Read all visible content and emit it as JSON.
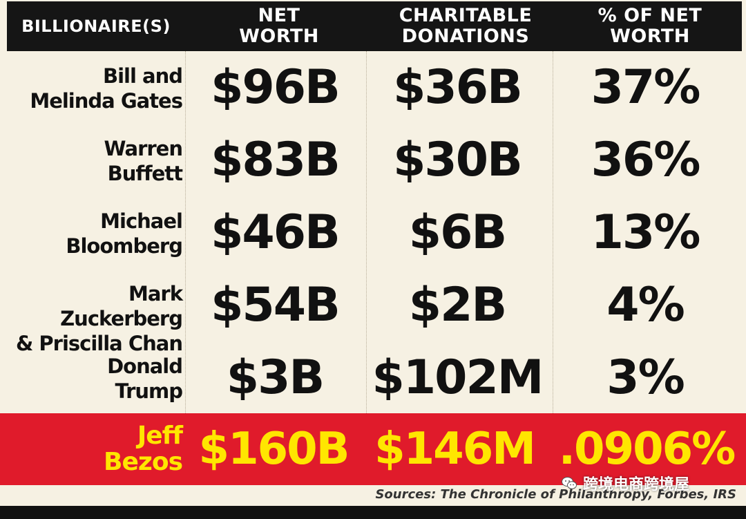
{
  "chart_data": {
    "type": "table",
    "columns": [
      "BILLIONAIRE(S)",
      "NET\nWORTH",
      "CHARITABLE\nDONATIONS",
      "% OF NET\nWORTH"
    ],
    "rows": [
      {
        "name": "Bill and\nMelinda Gates",
        "net_worth": "$96B",
        "donations": "$36B",
        "percent": "37%"
      },
      {
        "name": "Warren\nBuffett",
        "net_worth": "$83B",
        "donations": "$30B",
        "percent": "36%"
      },
      {
        "name": "Michael\nBloomberg",
        "net_worth": "$46B",
        "donations": "$6B",
        "percent": "13%"
      },
      {
        "name": "Mark Zuckerberg\n& Priscilla Chan",
        "net_worth": "$54B",
        "donations": "$2B",
        "percent": "4%"
      },
      {
        "name": "Donald\nTrump",
        "net_worth": "$3B",
        "donations": "$102M",
        "percent": "3%"
      }
    ],
    "highlight_row": {
      "name": "Jeff\nBezos",
      "net_worth": "$160B",
      "donations": "$146M",
      "percent": ".0906%"
    },
    "source": "Sources: The Chronicle of Philanthropy, Forbes, IRS"
  },
  "watermark": {
    "icon": "wechat-icon",
    "text": "跨境电商跨境屋"
  },
  "colors": {
    "background": "#f6f1e3",
    "header": "#151515",
    "highlight_bg": "#e01b2b",
    "highlight_text": "#ffe600",
    "text": "#111111"
  }
}
